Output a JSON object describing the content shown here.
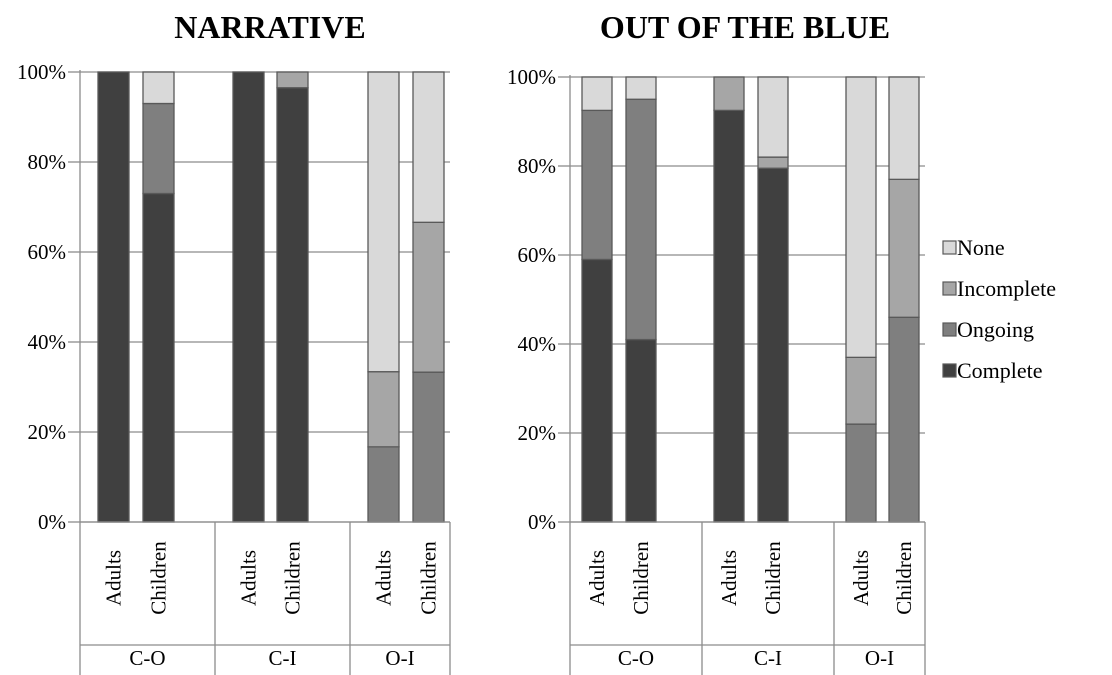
{
  "chart_data": [
    {
      "type": "bar",
      "stacked": true,
      "title": "NARRATIVE",
      "groups": [
        "C-O",
        "C-I",
        "O-I"
      ],
      "categories": [
        "Adults",
        "Children"
      ],
      "yticks": [
        "0%",
        "20%",
        "40%",
        "60%",
        "80%",
        "100%"
      ],
      "ylim": [
        0,
        100
      ],
      "grid": true,
      "series": [
        {
          "name": "Complete",
          "color": "#404040",
          "values": [
            [
              100,
              73
            ],
            [
              100,
              96.5
            ],
            [
              0,
              0
            ]
          ]
        },
        {
          "name": "Ongoing",
          "color": "#7f7f7f",
          "values": [
            [
              0,
              20
            ],
            [
              0,
              0
            ],
            [
              16.7,
              33.3
            ]
          ]
        },
        {
          "name": "Incomplete",
          "color": "#a6a6a6",
          "values": [
            [
              0,
              0
            ],
            [
              0,
              3.5
            ],
            [
              16.7,
              33.3
            ]
          ]
        },
        {
          "name": "None",
          "color": "#d9d9d9",
          "values": [
            [
              0,
              7
            ],
            [
              0,
              0
            ],
            [
              66.6,
              33.4
            ]
          ]
        }
      ]
    },
    {
      "type": "bar",
      "stacked": true,
      "title": "OUT OF THE BLUE",
      "groups": [
        "C-O",
        "C-I",
        "O-I"
      ],
      "categories": [
        "Adults",
        "Children"
      ],
      "yticks": [
        "0%",
        "20%",
        "40%",
        "60%",
        "80%",
        "100%"
      ],
      "ylim": [
        0,
        100
      ],
      "grid": true,
      "series": [
        {
          "name": "Complete",
          "color": "#404040",
          "values": [
            [
              59,
              41
            ],
            [
              92.5,
              79.5
            ],
            [
              0,
              0
            ]
          ]
        },
        {
          "name": "Ongoing",
          "color": "#7f7f7f",
          "values": [
            [
              33.5,
              54
            ],
            [
              0,
              0
            ],
            [
              22,
              46
            ]
          ]
        },
        {
          "name": "Incomplete",
          "color": "#a6a6a6",
          "values": [
            [
              0,
              0
            ],
            [
              7.5,
              2.5
            ],
            [
              15,
              31
            ]
          ]
        },
        {
          "name": "None",
          "color": "#d9d9d9",
          "values": [
            [
              7.5,
              5
            ],
            [
              0,
              18
            ],
            [
              63,
              23
            ]
          ]
        }
      ]
    }
  ],
  "legend": {
    "placement": "right",
    "items": [
      {
        "name": "None",
        "color": "#d9d9d9"
      },
      {
        "name": "Incomplete",
        "color": "#a6a6a6"
      },
      {
        "name": "Ongoing",
        "color": "#7f7f7f"
      },
      {
        "name": "Complete",
        "color": "#404040"
      }
    ]
  }
}
